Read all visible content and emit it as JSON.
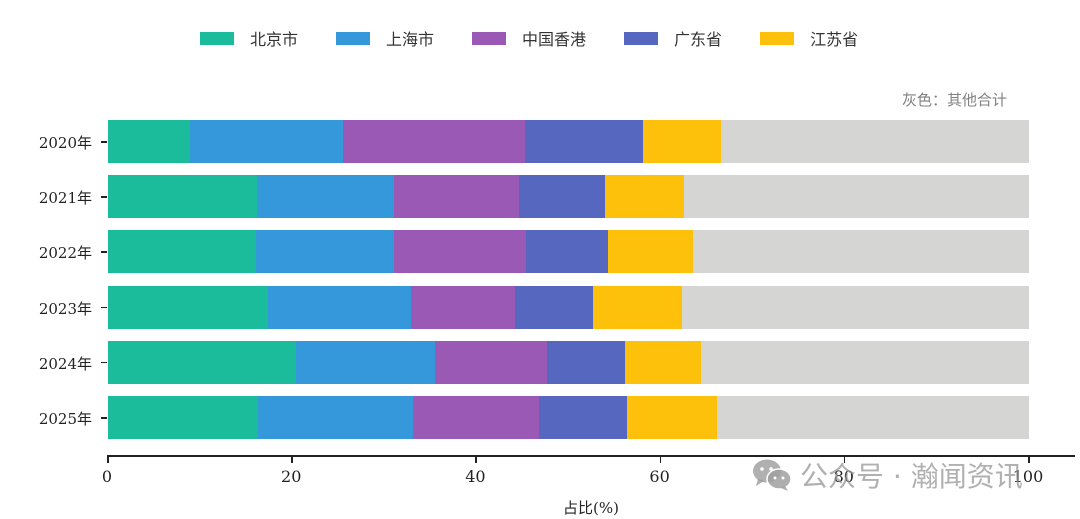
{
  "chart_data": {
    "type": "bar",
    "orientation": "horizontal",
    "stacked": true,
    "title": "",
    "xlabel": "占比(%)",
    "ylabel": "",
    "xlim": [
      0,
      100
    ],
    "xticks": [
      0,
      20,
      40,
      60,
      80,
      100
    ],
    "categories": [
      "2020年",
      "2021年",
      "2022年",
      "2023年",
      "2024年",
      "2025年"
    ],
    "series": [
      {
        "name": "北京市",
        "color": "#1abc9c",
        "values": [
          8.9,
          16.2,
          16.1,
          17.4,
          20.4,
          16.3
        ]
      },
      {
        "name": "上海市",
        "color": "#3498db",
        "values": [
          16.6,
          14.9,
          15.0,
          15.5,
          15.1,
          16.8
        ]
      },
      {
        "name": "中国香港",
        "color": "#9b59b6",
        "values": [
          19.8,
          13.5,
          14.3,
          11.3,
          12.2,
          13.7
        ]
      },
      {
        "name": "广东省",
        "color": "#5567be",
        "values": [
          12.8,
          9.4,
          8.9,
          8.5,
          8.4,
          9.6
        ]
      },
      {
        "name": "江苏省",
        "color": "#fdc00b",
        "values": [
          8.5,
          8.5,
          9.2,
          9.6,
          8.3,
          9.7
        ]
      },
      {
        "name": "其他合计",
        "color": "#d5d5d3",
        "values": [
          33.4,
          37.5,
          36.5,
          37.7,
          35.6,
          33.9
        ]
      }
    ],
    "legend_position": "top",
    "grid": false,
    "annotation": "灰色：其他合计"
  },
  "legend": {
    "items": [
      {
        "label": "北京市",
        "color": "#1abc9c"
      },
      {
        "label": "上海市",
        "color": "#3498db"
      },
      {
        "label": "中国香港",
        "color": "#9b59b6"
      },
      {
        "label": "广东省",
        "color": "#5567be"
      },
      {
        "label": "江苏省",
        "color": "#fdc00b"
      }
    ]
  },
  "note": "灰色：其他合计",
  "axis": {
    "xlabel": "占比(%)",
    "xticks": [
      "0",
      "20",
      "40",
      "60",
      "80",
      "100"
    ],
    "ylabels": [
      "2020年",
      "2021年",
      "2022年",
      "2023年",
      "2024年",
      "2025年"
    ]
  },
  "watermark": {
    "icon": "wechat-icon",
    "text": "公众号 · 瀚闻资讯"
  }
}
